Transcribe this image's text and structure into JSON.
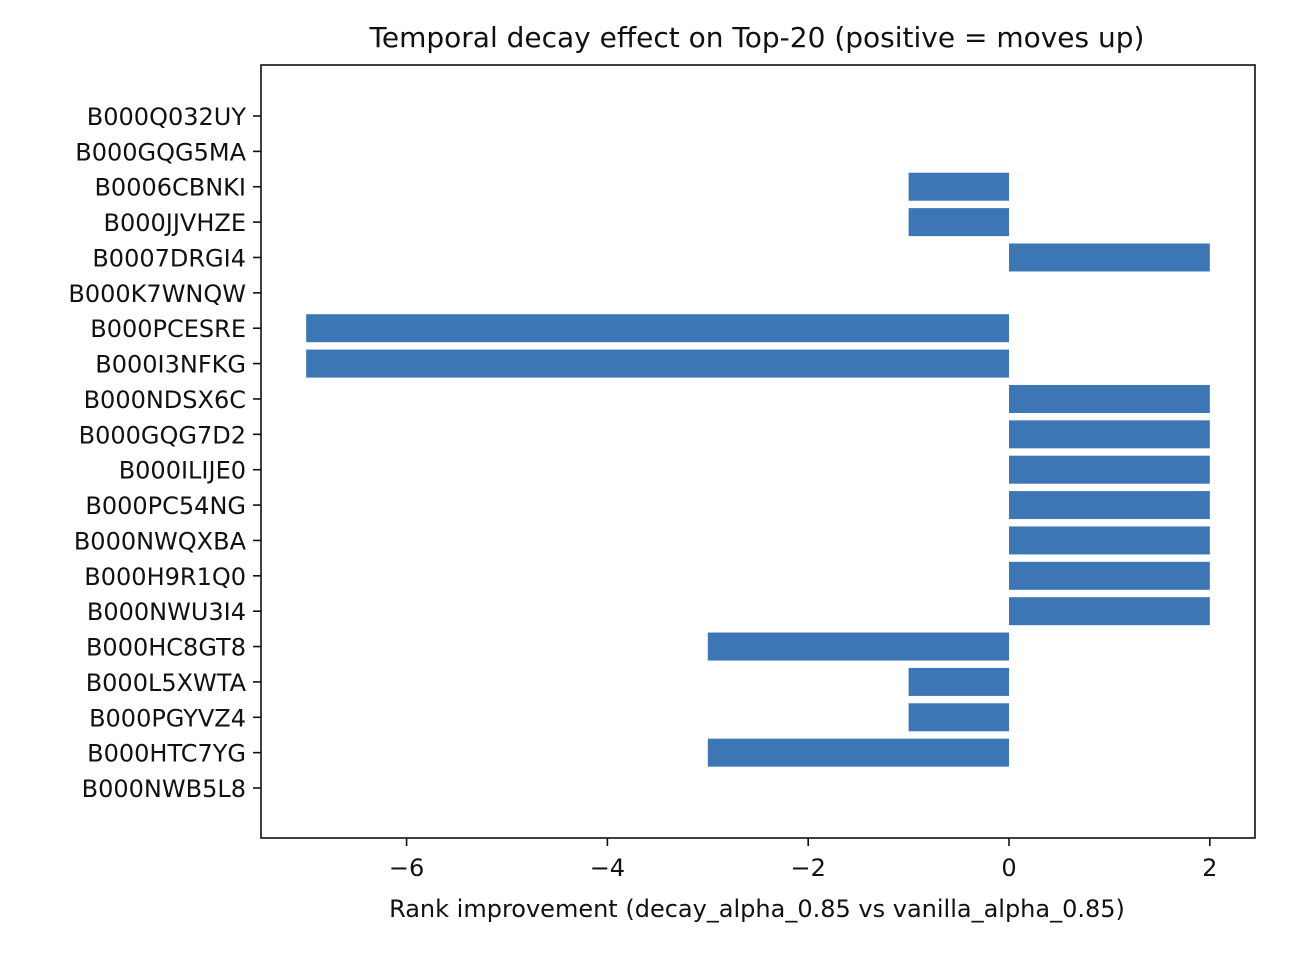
{
  "chart_data": {
    "type": "bar",
    "orientation": "horizontal",
    "title": "Temporal decay effect on Top-20 (positive = moves up)",
    "xlabel": "Rank improvement (decay_alpha_0.85 vs vanilla_alpha_0.85)",
    "ylabel": "",
    "categories": [
      "B000Q032UY",
      "B000GQG5MA",
      "B0006CBNKI",
      "B000JJVHZE",
      "B0007DRGI4",
      "B000K7WNQW",
      "B000PCESRE",
      "B000I3NFKG",
      "B000NDSX6C",
      "B000GQG7D2",
      "B000ILIJE0",
      "B000PC54NG",
      "B000NWQXBA",
      "B000H9R1Q0",
      "B000NWU3I4",
      "B000HC8GT8",
      "B000L5XWTA",
      "B000PGYVZ4",
      "B000HTC7YG",
      "B000NWB5L8"
    ],
    "values": [
      0,
      0,
      -1,
      -1,
      2,
      0,
      -7,
      -7,
      2,
      2,
      2,
      2,
      2,
      2,
      2,
      -3,
      -1,
      -1,
      -3,
      0
    ],
    "xlim": [
      -7.45,
      2.45
    ],
    "xticks": [
      -6,
      -4,
      -2,
      0,
      2
    ],
    "xtick_labels": [
      "−6",
      "−4",
      "−2",
      "0",
      "2"
    ],
    "grid": false,
    "legend": "none",
    "colors": {
      "bar": "#3c76b5",
      "axis": "#111111",
      "background": "#ffffff"
    }
  }
}
